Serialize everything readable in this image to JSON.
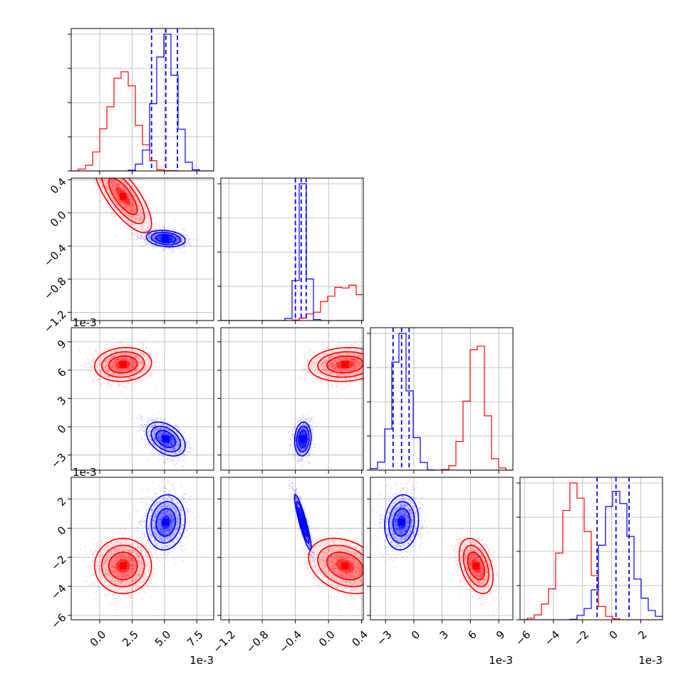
{
  "chart_data": {
    "type": "corner",
    "title": "",
    "n_params": 4,
    "grid": true,
    "series": [
      {
        "color": "#ff0000",
        "means": [
          1.8,
          0.2,
          6.6,
          -2.6
        ],
        "sds": [
          1.1,
          0.22,
          0.9,
          0.95
        ],
        "corr": [
          [
            1.0,
            -0.75,
            0.1,
            0.0
          ],
          [
            -0.75,
            1.0,
            0.1,
            -0.3
          ],
          [
            0.1,
            0.1,
            1.0,
            -0.4
          ],
          [
            0.0,
            -0.3,
            -0.4,
            1.0
          ]
        ]
      },
      {
        "color": "#0000ff",
        "means": [
          5.1,
          -0.31,
          -1.3,
          0.4
        ],
        "sds": [
          0.75,
          0.05,
          0.9,
          0.95
        ],
        "corr": [
          [
            1.0,
            -0.2,
            -0.4,
            0.1
          ],
          [
            -0.2,
            1.0,
            0.1,
            -0.9
          ],
          [
            -0.4,
            0.1,
            1.0,
            0.1
          ],
          [
            0.1,
            -0.9,
            0.1,
            1.0
          ]
        ]
      }
    ],
    "quantiles": [
      [
        4.0,
        5.1,
        6.0
      ],
      [
        -0.4,
        -0.33,
        -0.27
      ],
      [
        -2.2,
        -1.3,
        -0.5
      ],
      [
        -1.0,
        0.3,
        1.2
      ]
    ],
    "ranges": [
      [
        -2.2,
        8.8
      ],
      [
        -1.3,
        0.42
      ],
      [
        -4.6,
        10.5
      ],
      [
        -6.3,
        3.5
      ]
    ],
    "ticks": [
      [
        "0.0",
        "2.5",
        "5.0",
        "7.5"
      ],
      [
        "-1.2",
        "-0.8",
        "-0.4",
        "0.0",
        "0.4"
      ],
      [
        "-3",
        "0",
        "3",
        "6",
        "9"
      ],
      [
        "-6",
        "-4",
        "-2",
        "0",
        "2"
      ]
    ],
    "tick_values": [
      [
        0.0,
        2.5,
        5.0,
        7.5
      ],
      [
        -1.2,
        -0.8,
        -0.4,
        0.0,
        0.4
      ],
      [
        -3,
        0,
        3,
        6,
        9
      ],
      [
        -6,
        -4,
        -2,
        0,
        2
      ]
    ],
    "scale_labels": [
      "1e-3",
      "",
      "1e-3",
      "1e-3"
    ],
    "axis_labels": [
      "",
      "",
      "",
      ""
    ]
  }
}
